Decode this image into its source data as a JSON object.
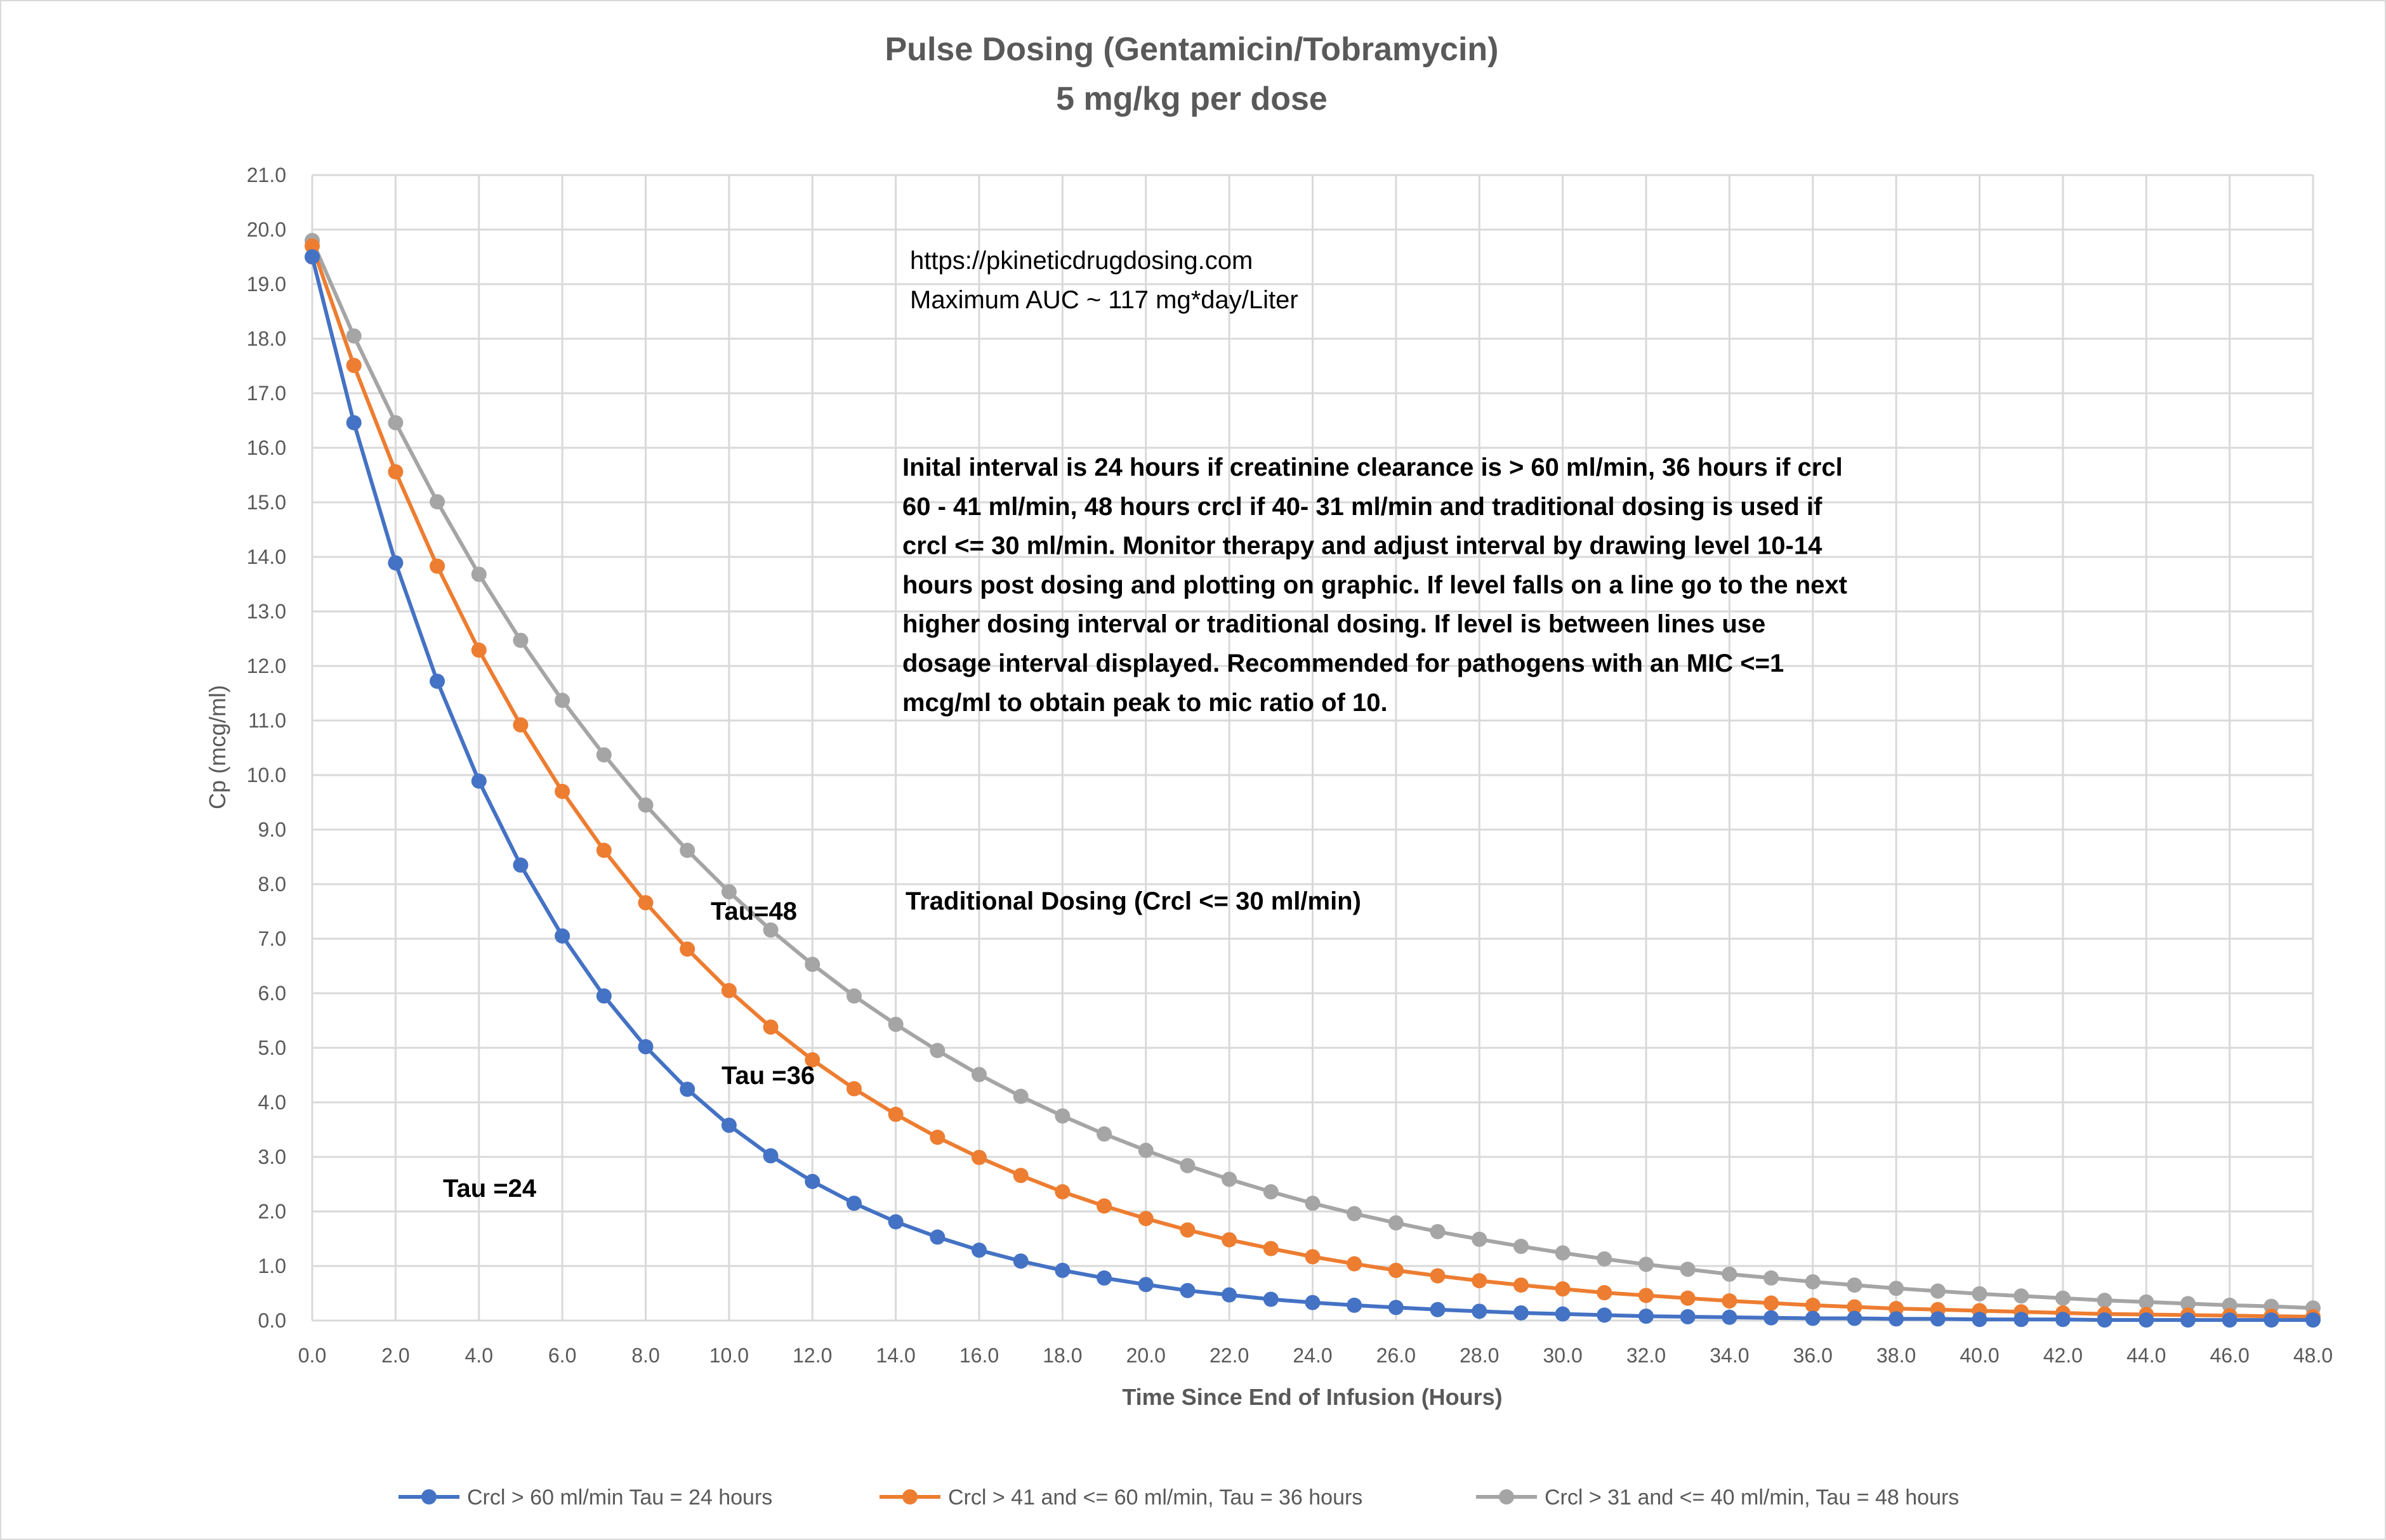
{
  "chart_data": {
    "type": "line",
    "title": "Pulse Dosing (Gentamicin/Tobramycin)",
    "subtitle": "5 mg/kg per dose",
    "xlabel": "Time Since End of Infusion (Hours)",
    "ylabel": "Cp (mcg/ml)",
    "xlim": [
      0,
      48
    ],
    "ylim": [
      0,
      21
    ],
    "x_tick_step": 2,
    "y_tick_step": 1,
    "grid": true,
    "legend_position": "bottom",
    "x": [
      0,
      1,
      2,
      3,
      4,
      5,
      6,
      7,
      8,
      9,
      10,
      11,
      12,
      13,
      14,
      15,
      16,
      17,
      18,
      19,
      20,
      21,
      22,
      23,
      24,
      25,
      26,
      27,
      28,
      29,
      30,
      31,
      32,
      33,
      34,
      35,
      36,
      37,
      38,
      39,
      40,
      41,
      42,
      43,
      44,
      45,
      46,
      47,
      48
    ],
    "series": [
      {
        "name": "Crcl > 60 ml/min Tau = 24 hours",
        "color": "#4472C4",
        "values": [
          19.5,
          16.46,
          13.89,
          11.72,
          9.89,
          8.35,
          7.05,
          5.95,
          5.02,
          4.24,
          3.58,
          3.02,
          2.55,
          2.15,
          1.81,
          1.53,
          1.29,
          1.09,
          0.92,
          0.78,
          0.66,
          0.55,
          0.47,
          0.39,
          0.33,
          0.28,
          0.24,
          0.2,
          0.17,
          0.14,
          0.12,
          0.1,
          0.08,
          0.07,
          0.06,
          0.05,
          0.04,
          0.04,
          0.03,
          0.03,
          0.02,
          0.02,
          0.02,
          0.01,
          0.01,
          0.01,
          0.01,
          0.01,
          0.01
        ]
      },
      {
        "name": "Crcl > 41 and <= 60 ml/min, Tau = 36 hours",
        "color": "#ED7D31",
        "values": [
          19.7,
          17.51,
          15.56,
          13.83,
          12.29,
          10.92,
          9.7,
          8.62,
          7.66,
          6.81,
          6.05,
          5.38,
          4.78,
          4.25,
          3.78,
          3.36,
          2.99,
          2.66,
          2.36,
          2.1,
          1.87,
          1.66,
          1.48,
          1.32,
          1.17,
          1.04,
          0.92,
          0.82,
          0.73,
          0.65,
          0.58,
          0.51,
          0.46,
          0.41,
          0.36,
          0.32,
          0.28,
          0.25,
          0.22,
          0.2,
          0.18,
          0.16,
          0.14,
          0.12,
          0.11,
          0.1,
          0.09,
          0.08,
          0.07
        ]
      },
      {
        "name": "Crcl > 31 and <= 40 ml/min, Tau = 48 hours",
        "color": "#A5A5A5",
        "values": [
          19.8,
          18.05,
          16.46,
          15.01,
          13.68,
          12.47,
          11.37,
          10.37,
          9.45,
          8.62,
          7.86,
          7.16,
          6.53,
          5.95,
          5.43,
          4.95,
          4.51,
          4.11,
          3.75,
          3.42,
          3.12,
          2.84,
          2.59,
          2.36,
          2.15,
          1.96,
          1.79,
          1.63,
          1.49,
          1.36,
          1.24,
          1.13,
          1.03,
          0.94,
          0.85,
          0.78,
          0.71,
          0.65,
          0.59,
          0.54,
          0.49,
          0.45,
          0.41,
          0.37,
          0.34,
          0.31,
          0.28,
          0.26,
          0.23
        ]
      }
    ],
    "annotations": {
      "url": "https://pkineticdrugdosing.com",
      "auc": "Maximum AUC ~ 117 mg*day/Liter",
      "paragraph": [
        "Inital interval is 24 hours if creatinine clearance is > 60 ml/min, 36 hours if crcl",
        "60 - 41 ml/min, 48 hours crcl if 40- 31 ml/min and traditional dosing is used if",
        "crcl <= 30 ml/min. Monitor therapy and adjust interval by drawing level 10-14",
        "hours post dosing and plotting on graphic.  If level falls on a line go to the next",
        "higher dosing interval or traditional dosing. If level is between lines use",
        "dosage interval displayed. Recommended for pathogens with an MIC <=1",
        "mcg/ml to obtain peak to mic ratio of 10."
      ],
      "traditional": "Traditional Dosing (Crcl <= 30 ml/min)",
      "tau48": "Tau=48",
      "tau36": "Tau =36",
      "tau24": "Tau =24"
    }
  }
}
